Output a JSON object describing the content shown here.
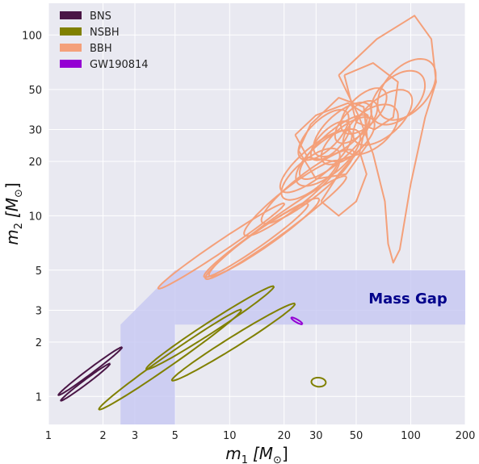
{
  "chart_data": {
    "type": "contour",
    "xlabel_main": "m",
    "xlabel_sub": "1",
    "xlabel_unit": "[M",
    "xlabel_unit_sub": "⊙",
    "xlabel_close": "]",
    "ylabel_main": "m",
    "ylabel_sub": "2",
    "ylabel_unit": "[M",
    "ylabel_unit_sub": "⊙",
    "ylabel_close": "]",
    "xscale": "log",
    "yscale": "log",
    "xlim": [
      1,
      200
    ],
    "ylim": [
      0.7,
      150
    ],
    "xticks": [
      1,
      2,
      3,
      5,
      10,
      20,
      30,
      50,
      100,
      200
    ],
    "xtick_labels": [
      "1",
      "2",
      "3",
      "5",
      "10",
      "20",
      "30",
      "50",
      "100",
      "200"
    ],
    "yticks": [
      1,
      2,
      3,
      5,
      10,
      20,
      30,
      50,
      100
    ],
    "ytick_labels": [
      "1",
      "2",
      "3",
      "5",
      "10",
      "20",
      "30",
      "50",
      "100"
    ],
    "grid": true,
    "background": "#e9e9f1",
    "legend_position": "top-left",
    "legend": [
      {
        "label": "BNS",
        "color": "#4a1646"
      },
      {
        "label": "NSBH",
        "color": "#808000"
      },
      {
        "label": "BBH",
        "color": "#f4a07a"
      },
      {
        "label": "GW190814",
        "color": "#9400d3"
      }
    ],
    "mass_gap": {
      "label": "Mass Gap",
      "label_color": "#00008b",
      "region_color": "#c6c7f2",
      "mass_min": 2.5,
      "mass_max": 5
    },
    "series": [
      {
        "name": "BNS",
        "color": "#4a1646",
        "events": [
          {
            "m1": 1.6,
            "m2": 1.2,
            "sm1": 0.17,
            "sm2": 0.012,
            "theta": 37
          },
          {
            "m1": 1.7,
            "m2": 1.38,
            "sm1": 0.22,
            "sm2": 0.014,
            "theta": 37
          }
        ]
      },
      {
        "name": "NSBH",
        "color": "#808000",
        "events": [
          {
            "m1": 4.7,
            "m2": 1.6,
            "sm1": 0.48,
            "sm2": 0.03,
            "theta": 35
          },
          {
            "m1": 7.8,
            "m2": 2.4,
            "sm1": 0.42,
            "sm2": 0.03,
            "theta": 33
          },
          {
            "m1": 10.5,
            "m2": 2.0,
            "sm1": 0.4,
            "sm2": 0.03,
            "theta": 32
          },
          {
            "m1": 31,
            "m2": 1.2,
            "sm1": 0.04,
            "sm2": 0.025,
            "theta": -5
          }
        ]
      },
      {
        "name": "BBH",
        "color": "#f4a07a",
        "events": [
          {
            "m1": 9,
            "m2": 6.8,
            "sm1": 0.42,
            "sm2": 0.03,
            "theta": 34
          },
          {
            "m1": 14,
            "m2": 7.3,
            "sm1": 0.35,
            "sm2": 0.04,
            "theta": 35
          },
          {
            "m1": 15.5,
            "m2": 7.6,
            "sm1": 0.37,
            "sm2": 0.05,
            "theta": 35
          },
          {
            "m1": 18,
            "m2": 8.6,
            "sm1": 0.48,
            "sm2": 0.05,
            "theta": 36
          },
          {
            "m1": 22,
            "m2": 12.5,
            "sm1": 0.33,
            "sm2": 0.06,
            "theta": 38
          },
          {
            "m1": 27,
            "m2": 14.5,
            "sm1": 0.32,
            "sm2": 0.07,
            "theta": 38
          },
          {
            "m1": 30,
            "m2": 20,
            "sm1": 0.25,
            "sm2": 0.08,
            "theta": 40
          },
          {
            "m1": 35,
            "m2": 21,
            "sm1": 0.22,
            "sm2": 0.09,
            "theta": 40
          },
          {
            "m1": 38,
            "m2": 24,
            "sm1": 0.25,
            "sm2": 0.08,
            "theta": 42
          },
          {
            "m1": 33,
            "m2": 28,
            "sm1": 0.18,
            "sm2": 0.08,
            "theta": 45
          },
          {
            "m1": 42,
            "m2": 30,
            "sm1": 0.2,
            "sm2": 0.09,
            "theta": 42
          },
          {
            "m1": 45,
            "m2": 26,
            "sm1": 0.18,
            "sm2": 0.08,
            "theta": 40
          },
          {
            "m1": 55,
            "m2": 38,
            "sm1": 0.16,
            "sm2": 0.08,
            "theta": 45
          },
          {
            "m1": 60,
            "m2": 30,
            "sm1": 0.18,
            "sm2": 0.1,
            "theta": 40
          },
          {
            "m1": 70,
            "m2": 35,
            "sm1": 0.2,
            "sm2": 0.1,
            "theta": 42
          },
          {
            "m1": 85,
            "m2": 45,
            "sm1": 0.18,
            "sm2": 0.11,
            "theta": 45
          },
          {
            "m1": 95,
            "m2": 50,
            "sm1": 0.2,
            "sm2": 0.12,
            "theta": 48
          },
          {
            "m1": 28,
            "m2": 17,
            "sm1": 0.2,
            "sm2": 0.08,
            "theta": 40
          },
          {
            "m1": 50,
            "m2": 33,
            "sm1": 0.15,
            "sm2": 0.07,
            "theta": 45
          },
          {
            "m1": 36,
            "m2": 26,
            "sm1": 0.14,
            "sm2": 0.06,
            "theta": 45
          }
        ]
      },
      {
        "name": "GW190814",
        "color": "#9400d3",
        "events": [
          {
            "m1": 23.5,
            "m2": 2.62,
            "sm1": 0.035,
            "sm2": 0.008,
            "theta": -30
          }
        ]
      }
    ],
    "extra_shapes": [
      {
        "series": "BBH",
        "points": [
          [
            40,
            60
          ],
          [
            65,
            95
          ],
          [
            105,
            128
          ],
          [
            130,
            95
          ],
          [
            138,
            55
          ],
          [
            120,
            35
          ],
          [
            100,
            15
          ],
          [
            87,
            6.5
          ],
          [
            80,
            5.5
          ],
          [
            75,
            7
          ],
          [
            72,
            12
          ],
          [
            62,
            22
          ],
          [
            52,
            35
          ]
        ]
      },
      {
        "series": "BBH",
        "points": [
          [
            43,
            60
          ],
          [
            62,
            70
          ],
          [
            85,
            55
          ],
          [
            80,
            35
          ],
          [
            63,
            30
          ],
          [
            50,
            33
          ]
        ]
      },
      {
        "series": "BBH",
        "points": [
          [
            24,
            23
          ],
          [
            28,
            32
          ],
          [
            40,
            45
          ],
          [
            55,
            40
          ],
          [
            58,
            25
          ],
          [
            44,
            17
          ],
          [
            30,
            16
          ]
        ]
      },
      {
        "series": "BBH",
        "points": [
          [
            23,
            28
          ],
          [
            30,
            36
          ],
          [
            45,
            42
          ],
          [
            58,
            36
          ],
          [
            52,
            22
          ],
          [
            38,
            20
          ],
          [
            27,
            21
          ]
        ]
      },
      {
        "series": "BBH",
        "points": [
          [
            32,
            12
          ],
          [
            40,
            17
          ],
          [
            52,
            23
          ],
          [
            57,
            17
          ],
          [
            50,
            12
          ],
          [
            40,
            10
          ]
        ]
      }
    ]
  }
}
